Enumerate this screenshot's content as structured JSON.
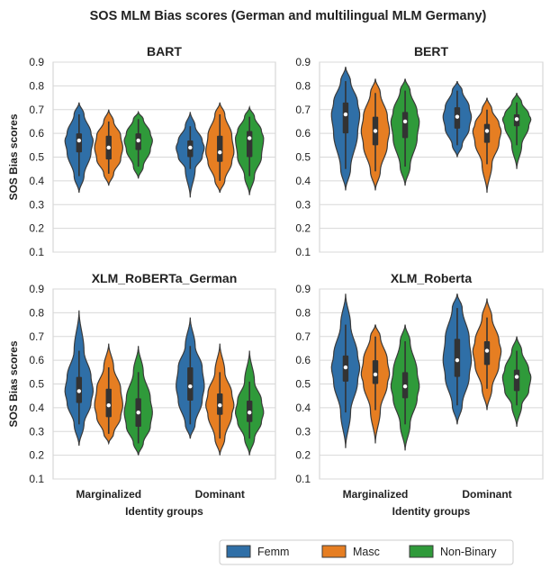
{
  "suptitle": "SOS MLM Bias scores (German and multilingual MLM Germany)",
  "colors": {
    "Femm": "#2f6fa7",
    "Masc": "#e67e22",
    "Non-Binary": "#2f9a3a",
    "stroke": "#3a3a3a",
    "grid": "#d8d8d8",
    "axis": "#cfcfcf"
  },
  "legend": {
    "items": [
      "Femm",
      "Masc",
      "Non-Binary"
    ],
    "placement": "bottom-right"
  },
  "chart_data": [
    {
      "type": "violin",
      "title": "BART",
      "xlabel": "",
      "ylabel": "SOS Bias scores",
      "ylim": [
        0.1,
        0.9
      ],
      "yticks": [
        "0.1",
        "0.2",
        "0.3",
        "0.4",
        "0.5",
        "0.6",
        "0.7",
        "0.8",
        "0.9"
      ],
      "categories": [
        "Marginalized",
        "Dominant"
      ],
      "show_xticks": false,
      "series": [
        {
          "name": "Femm",
          "stats": [
            {
              "min": 0.35,
              "max": 0.73,
              "q1": 0.52,
              "median": 0.57,
              "q3": 0.6,
              "wlo": 0.42,
              "whi": 0.68
            },
            {
              "min": 0.33,
              "max": 0.69,
              "q1": 0.5,
              "median": 0.54,
              "q3": 0.57,
              "wlo": 0.45,
              "whi": 0.63
            }
          ]
        },
        {
          "name": "Masc",
          "stats": [
            {
              "min": 0.38,
              "max": 0.7,
              "q1": 0.49,
              "median": 0.54,
              "q3": 0.59,
              "wlo": 0.43,
              "whi": 0.65
            },
            {
              "min": 0.35,
              "max": 0.73,
              "q1": 0.48,
              "median": 0.52,
              "q3": 0.59,
              "wlo": 0.4,
              "whi": 0.68
            }
          ]
        },
        {
          "name": "Non-Binary",
          "stats": [
            {
              "min": 0.41,
              "max": 0.69,
              "q1": 0.53,
              "median": 0.57,
              "q3": 0.6,
              "wlo": 0.46,
              "whi": 0.66
            },
            {
              "min": 0.34,
              "max": 0.71,
              "q1": 0.5,
              "median": 0.58,
              "q3": 0.61,
              "wlo": 0.42,
              "whi": 0.67
            }
          ]
        }
      ]
    },
    {
      "type": "violin",
      "title": "BERT",
      "xlabel": "",
      "ylabel": "",
      "ylim": [
        0.1,
        0.9
      ],
      "yticks": [
        "0.1",
        "0.2",
        "0.3",
        "0.4",
        "0.5",
        "0.6",
        "0.7",
        "0.8",
        "0.9"
      ],
      "categories": [
        "Marginalized",
        "Dominant"
      ],
      "show_xticks": false,
      "series": [
        {
          "name": "Femm",
          "stats": [
            {
              "min": 0.36,
              "max": 0.88,
              "q1": 0.6,
              "median": 0.68,
              "q3": 0.73,
              "wlo": 0.45,
              "whi": 0.82
            },
            {
              "min": 0.5,
              "max": 0.82,
              "q1": 0.62,
              "median": 0.67,
              "q3": 0.71,
              "wlo": 0.55,
              "whi": 0.78
            }
          ]
        },
        {
          "name": "Masc",
          "stats": [
            {
              "min": 0.36,
              "max": 0.83,
              "q1": 0.55,
              "median": 0.61,
              "q3": 0.67,
              "wlo": 0.44,
              "whi": 0.77
            },
            {
              "min": 0.35,
              "max": 0.75,
              "q1": 0.56,
              "median": 0.61,
              "q3": 0.64,
              "wlo": 0.47,
              "whi": 0.7
            }
          ]
        },
        {
          "name": "Non-Binary",
          "stats": [
            {
              "min": 0.38,
              "max": 0.83,
              "q1": 0.58,
              "median": 0.65,
              "q3": 0.69,
              "wlo": 0.46,
              "whi": 0.78
            },
            {
              "min": 0.45,
              "max": 0.77,
              "q1": 0.63,
              "median": 0.66,
              "q3": 0.68,
              "wlo": 0.55,
              "whi": 0.73
            }
          ]
        }
      ]
    },
    {
      "type": "violin",
      "title": "XLM_RoBERTa_German",
      "xlabel": "Identity groups",
      "ylabel": "SOS Bias scores",
      "ylim": [
        0.1,
        0.9
      ],
      "yticks": [
        "0.1",
        "0.2",
        "0.3",
        "0.4",
        "0.5",
        "0.6",
        "0.7",
        "0.8",
        "0.9"
      ],
      "categories": [
        "Marginalized",
        "Dominant"
      ],
      "show_xticks": true,
      "series": [
        {
          "name": "Femm",
          "stats": [
            {
              "min": 0.24,
              "max": 0.81,
              "q1": 0.42,
              "median": 0.47,
              "q3": 0.53,
              "wlo": 0.33,
              "whi": 0.64
            },
            {
              "min": 0.27,
              "max": 0.78,
              "q1": 0.43,
              "median": 0.49,
              "q3": 0.57,
              "wlo": 0.33,
              "whi": 0.66
            }
          ]
        },
        {
          "name": "Masc",
          "stats": [
            {
              "min": 0.25,
              "max": 0.67,
              "q1": 0.36,
              "median": 0.41,
              "q3": 0.48,
              "wlo": 0.29,
              "whi": 0.57
            },
            {
              "min": 0.2,
              "max": 0.67,
              "q1": 0.37,
              "median": 0.41,
              "q3": 0.46,
              "wlo": 0.27,
              "whi": 0.55
            }
          ]
        },
        {
          "name": "Non-Binary",
          "stats": [
            {
              "min": 0.2,
              "max": 0.66,
              "q1": 0.32,
              "median": 0.38,
              "q3": 0.44,
              "wlo": 0.25,
              "whi": 0.55
            },
            {
              "min": 0.2,
              "max": 0.64,
              "q1": 0.34,
              "median": 0.38,
              "q3": 0.43,
              "wlo": 0.27,
              "whi": 0.51
            }
          ]
        }
      ]
    },
    {
      "type": "violin",
      "title": "XLM_Roberta",
      "xlabel": "Identity groups",
      "ylabel": "",
      "ylim": [
        0.1,
        0.9
      ],
      "yticks": [
        "0.1",
        "0.2",
        "0.3",
        "0.4",
        "0.5",
        "0.6",
        "0.7",
        "0.8",
        "0.9"
      ],
      "categories": [
        "Marginalized",
        "Dominant"
      ],
      "show_xticks": true,
      "series": [
        {
          "name": "Femm",
          "stats": [
            {
              "min": 0.23,
              "max": 0.88,
              "q1": 0.51,
              "median": 0.57,
              "q3": 0.62,
              "wlo": 0.38,
              "whi": 0.75
            },
            {
              "min": 0.33,
              "max": 0.88,
              "q1": 0.53,
              "median": 0.6,
              "q3": 0.69,
              "wlo": 0.41,
              "whi": 0.82
            }
          ]
        },
        {
          "name": "Masc",
          "stats": [
            {
              "min": 0.25,
              "max": 0.75,
              "q1": 0.5,
              "median": 0.54,
              "q3": 0.6,
              "wlo": 0.39,
              "whi": 0.7
            },
            {
              "min": 0.39,
              "max": 0.86,
              "q1": 0.58,
              "median": 0.64,
              "q3": 0.68,
              "wlo": 0.48,
              "whi": 0.78
            }
          ]
        },
        {
          "name": "Non-Binary",
          "stats": [
            {
              "min": 0.22,
              "max": 0.75,
              "q1": 0.44,
              "median": 0.49,
              "q3": 0.55,
              "wlo": 0.33,
              "whi": 0.68
            },
            {
              "min": 0.32,
              "max": 0.7,
              "q1": 0.47,
              "median": 0.53,
              "q3": 0.56,
              "wlo": 0.41,
              "whi": 0.64
            }
          ]
        }
      ]
    }
  ]
}
